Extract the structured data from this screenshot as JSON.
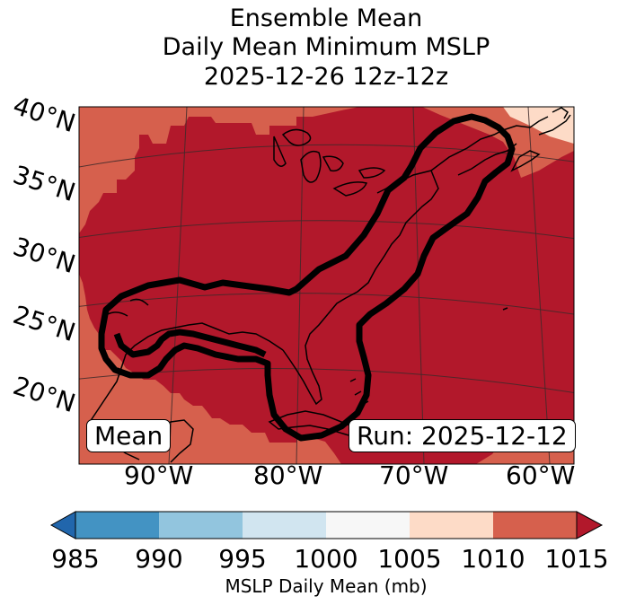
{
  "title": {
    "line1": "Ensemble Mean",
    "line2": "Daily Mean Minimum MSLP",
    "line3": "2025-12-26 12z-12z"
  },
  "map": {
    "latitude_labels": [
      "40°N",
      "35°N",
      "30°N",
      "25°N",
      "20°N"
    ],
    "longitude_labels": [
      "90°W",
      "80°W",
      "70°W",
      "60°W"
    ],
    "mean_label": "Mean",
    "run_label": "Run: 2025-12-12",
    "contour_level_mb": 1010,
    "colors": {
      "lt1010": "#b2182b",
      "1010to1015": "#d6604d",
      "1005to1010": "#fddbc7",
      "contour": "#000000",
      "grid": "#4a3a3a"
    }
  },
  "colorbar": {
    "label": "MSLP Daily Mean (mb)",
    "ticks": [
      "985",
      "990",
      "995",
      "1000",
      "1005",
      "1010",
      "1015"
    ],
    "colors": [
      "#4393c3",
      "#92c5de",
      "#d1e5f0",
      "#f7f7f7",
      "#fddbc7",
      "#d6604d"
    ],
    "under_color": "#2166ac",
    "over_color": "#b2182b"
  }
}
